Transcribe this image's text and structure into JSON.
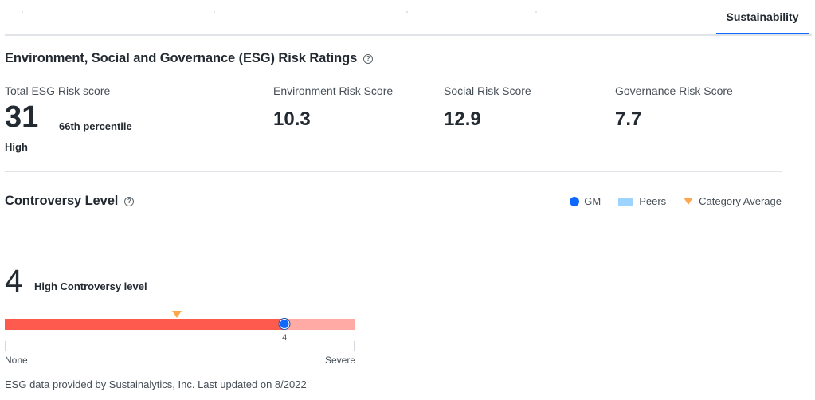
{
  "tabs": {
    "active_label": "Sustainability"
  },
  "esg": {
    "title": "Environment, Social and Governance (ESG) Risk Ratings",
    "help": "?",
    "total": {
      "label": "Total ESG Risk score",
      "value": "31",
      "percentile": "66th percentile",
      "category": "High"
    },
    "environment": {
      "label": "Environment Risk Score",
      "value": "10.3"
    },
    "social": {
      "label": "Social Risk Score",
      "value": "12.9"
    },
    "governance": {
      "label": "Governance Risk Score",
      "value": "7.7"
    }
  },
  "controversy": {
    "title": "Controversy Level",
    "help": "?",
    "legend": [
      "GM",
      "Peers",
      "Category Average"
    ],
    "value": "4",
    "description": "High Controversy level",
    "scale": {
      "min_label": "None",
      "max_label": "Severe",
      "min": 0,
      "max": 5
    },
    "company_level": 4,
    "category_average_level": 2.46,
    "marker_label": "4",
    "colors": {
      "filled": "#ff5a4e",
      "rest": "#ffaaa5",
      "company": "#0f69ff",
      "peers": "#9fd3ff",
      "category": "#ffa74f"
    }
  },
  "footer": "ESG data provided by Sustainalytics, Inc.  Last updated on 8/2022"
}
